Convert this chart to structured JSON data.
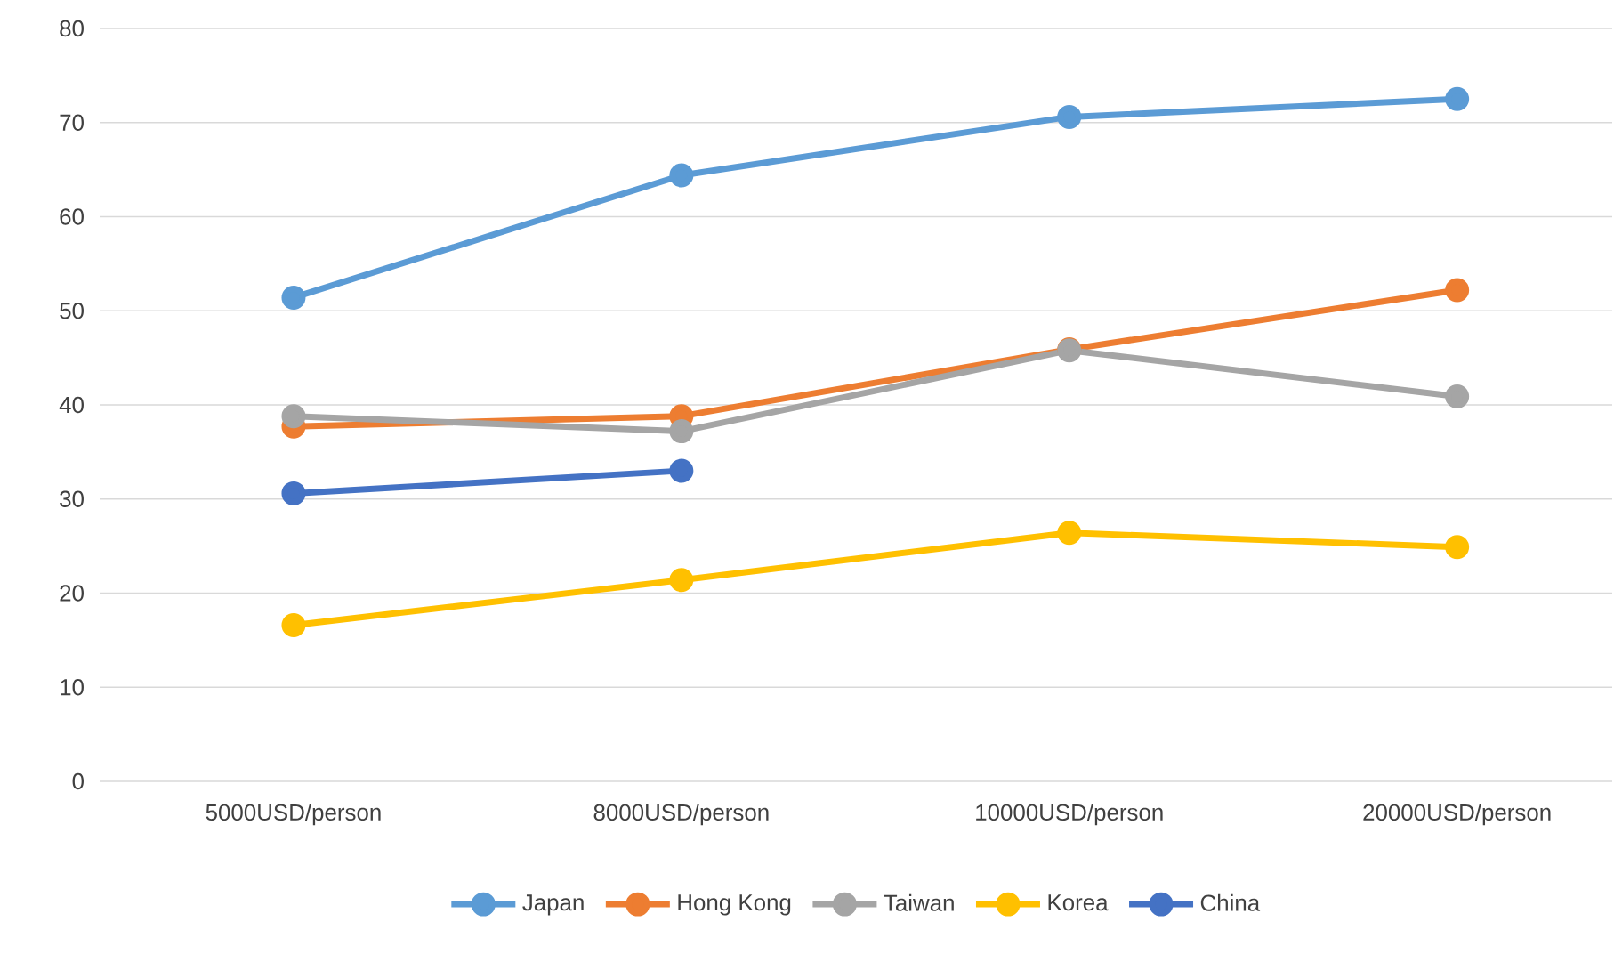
{
  "chart_data": {
    "type": "line",
    "categories": [
      "5000USD/person",
      "8000USD/person",
      "10000USD/person",
      "20000USD/person"
    ],
    "series": [
      {
        "name": "Japan",
        "color": "#5b9bd5",
        "values": [
          51.4,
          64.4,
          70.6,
          72.5
        ]
      },
      {
        "name": "Hong Kong",
        "color": "#ed7d31",
        "values": [
          37.7,
          38.8,
          45.9,
          52.2
        ]
      },
      {
        "name": "Taiwan",
        "color": "#a5a5a5",
        "values": [
          38.8,
          37.2,
          45.8,
          40.9
        ]
      },
      {
        "name": "Korea",
        "color": "#ffc000",
        "values": [
          16.6,
          21.4,
          26.4,
          24.9
        ]
      },
      {
        "name": "China",
        "color": "#4472c4",
        "values": [
          30.6,
          33.0,
          null,
          null
        ]
      }
    ],
    "ylim": [
      0,
      80
    ],
    "yticks": [
      0,
      10,
      20,
      30,
      40,
      50,
      60,
      70,
      80
    ],
    "grid": "y",
    "legend": "bottom",
    "marker": "circle",
    "line_style": "solid"
  }
}
